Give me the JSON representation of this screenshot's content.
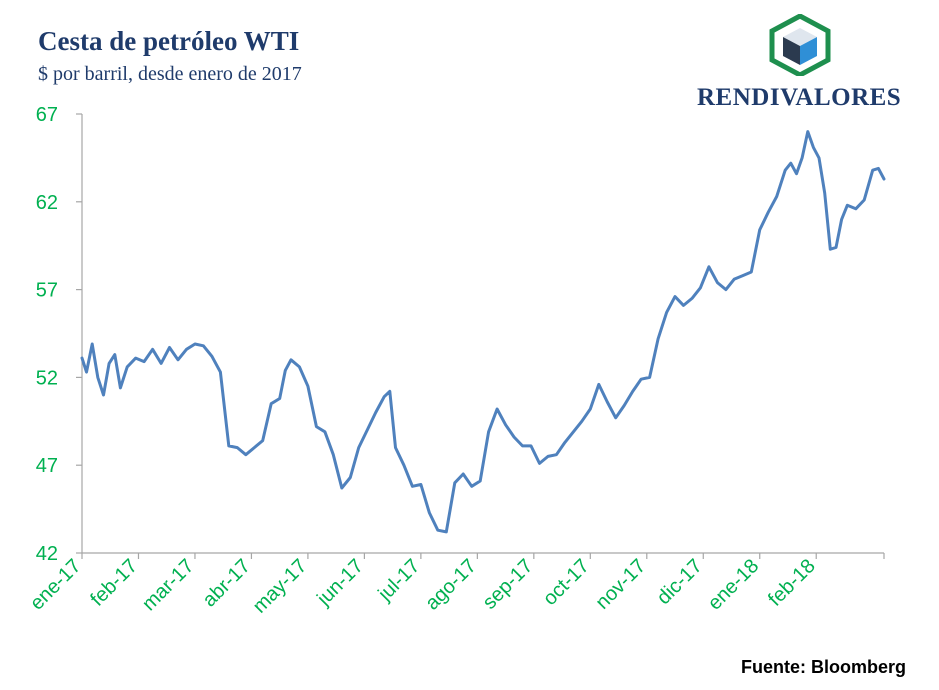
{
  "header": {
    "title": "Cesta de petróleo WTI",
    "subtitle": "$ por barril, desde enero de 2017",
    "brand": "RENDIVALORES",
    "source": "Fuente: Bloomberg"
  },
  "colors": {
    "title": "#1f3b6b",
    "line": "#4f81bd",
    "tick_labels": "#00b050",
    "axis": "#a6a6a6",
    "logo_green": "#1e8f4e",
    "logo_blue": "#2f8fd6",
    "logo_dark": "#2b3a4f"
  },
  "chart_data": {
    "type": "line",
    "title": "Cesta de petróleo WTI",
    "subtitle": "$ por barril, desde enero de 2017",
    "xlabel": "",
    "ylabel": "",
    "ylim": [
      42,
      67
    ],
    "yticks": [
      42,
      47,
      52,
      57,
      62,
      67
    ],
    "grid": false,
    "legend": "none",
    "categories": [
      "ene-17",
      "feb-17",
      "mar-17",
      "abr-17",
      "may-17",
      "jun-17",
      "jul-17",
      "ago-17",
      "sep-17",
      "oct-17",
      "nov-17",
      "dic-17",
      "ene-18",
      "feb-18"
    ],
    "x_range": [
      0,
      14.2
    ],
    "series": [
      {
        "name": "",
        "x": [
          0,
          0.08,
          0.18,
          0.28,
          0.38,
          0.48,
          0.58,
          0.68,
          0.8,
          0.95,
          1.1,
          1.25,
          1.4,
          1.55,
          1.7,
          1.85,
          2.0,
          2.15,
          2.3,
          2.45,
          2.6,
          2.75,
          2.9,
          3.05,
          3.2,
          3.35,
          3.5,
          3.6,
          3.7,
          3.85,
          4.0,
          4.15,
          4.3,
          4.45,
          4.6,
          4.75,
          4.9,
          5.05,
          5.2,
          5.35,
          5.45,
          5.55,
          5.7,
          5.85,
          6.0,
          6.15,
          6.3,
          6.45,
          6.6,
          6.75,
          6.9,
          7.05,
          7.2,
          7.35,
          7.5,
          7.65,
          7.8,
          7.95,
          8.1,
          8.25,
          8.4,
          8.55,
          8.7,
          8.85,
          9.0,
          9.15,
          9.3,
          9.45,
          9.6,
          9.75,
          9.9,
          10.05,
          10.2,
          10.35,
          10.5,
          10.65,
          10.8,
          10.95,
          11.1,
          11.25,
          11.4,
          11.55,
          11.7,
          11.85,
          12.0,
          12.15,
          12.3,
          12.45,
          12.55,
          12.65,
          12.75,
          12.85,
          12.95,
          13.05,
          13.15,
          13.25,
          13.35,
          13.45,
          13.55,
          13.7,
          13.85,
          14.0,
          14.1,
          14.2
        ],
        "values": [
          53.1,
          52.3,
          53.9,
          52.0,
          51.0,
          52.8,
          53.3,
          51.4,
          52.6,
          53.1,
          52.9,
          53.6,
          52.8,
          53.7,
          53.0,
          53.6,
          53.9,
          53.8,
          53.2,
          52.3,
          48.1,
          48.0,
          47.6,
          48.0,
          48.4,
          50.5,
          50.8,
          52.4,
          53.0,
          52.6,
          51.5,
          49.2,
          48.9,
          47.6,
          45.7,
          46.3,
          48.0,
          49.0,
          50.0,
          50.9,
          51.2,
          48.0,
          47.0,
          45.8,
          45.9,
          44.3,
          43.3,
          43.2,
          46.0,
          46.5,
          45.8,
          46.1,
          48.9,
          50.2,
          49.3,
          48.6,
          48.1,
          48.1,
          47.1,
          47.5,
          47.6,
          48.3,
          48.9,
          49.5,
          50.2,
          51.6,
          50.6,
          49.7,
          50.4,
          51.2,
          51.9,
          52.0,
          54.2,
          55.7,
          56.6,
          56.1,
          56.5,
          57.1,
          58.3,
          57.4,
          57.0,
          57.6,
          57.8,
          58.0,
          60.4,
          61.4,
          62.3,
          63.8,
          64.2,
          63.6,
          64.5,
          66.0,
          65.1,
          64.5,
          62.5,
          59.3,
          59.4,
          61.0,
          61.8,
          61.6,
          62.1,
          63.8,
          63.9,
          63.3
        ]
      }
    ]
  }
}
